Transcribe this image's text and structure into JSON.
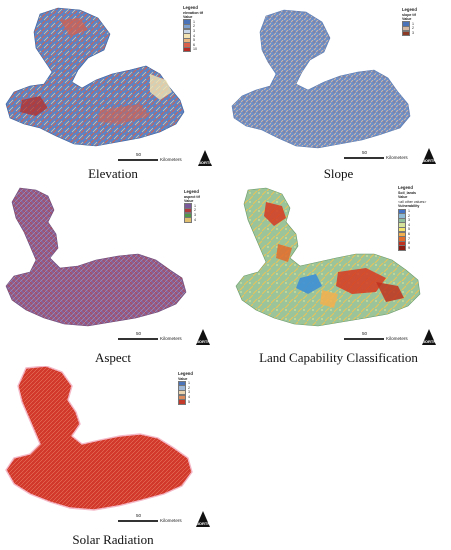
{
  "panels": [
    {
      "id": "elevation",
      "caption": "Elevation",
      "legend": {
        "title": "Legend",
        "subtitle": "elevation tif",
        "field": "Value",
        "items": [
          {
            "label": "1",
            "color": "#4a73b8"
          },
          {
            "label": "2",
            "color": "#7fa1d0"
          },
          {
            "label": "3",
            "color": "#c9d6e6"
          },
          {
            "label": "4",
            "color": "#f3e3b2"
          },
          {
            "label": "5",
            "color": "#eab47c"
          },
          {
            "label": "6",
            "color": "#d9604a"
          },
          {
            "label": "10",
            "color": "#b82a22"
          }
        ]
      },
      "scale": {
        "value": "50",
        "unit": "Kilometers"
      },
      "north": "NORTH",
      "base_color": "#5d83c4",
      "accents": [
        "#d9604a",
        "#f0cf9a",
        "#b82a22"
      ]
    },
    {
      "id": "slope",
      "caption": "Slope",
      "legend": {
        "title": "Legend",
        "subtitle": "slope tif",
        "field": "Value",
        "items": [
          {
            "label": "1",
            "color": "#4a73b8"
          },
          {
            "label": "2",
            "color": "#d5b8a4"
          },
          {
            "label": "3",
            "color": "#8b3a25"
          }
        ]
      },
      "scale": {
        "value": "50",
        "unit": "Kilometers"
      },
      "north": "NORTH",
      "base_color": "#6c8fc8",
      "accents": [
        "#d8b6a0",
        "#a8684e"
      ]
    },
    {
      "id": "aspect",
      "caption": "Aspect",
      "legend": {
        "title": "Legend",
        "subtitle": "aspect tif",
        "field": "Value",
        "items": [
          {
            "label": "1",
            "color": "#7b5a9c"
          },
          {
            "label": "2",
            "color": "#b33a3a"
          },
          {
            "label": "3",
            "color": "#4f9a4a"
          },
          {
            "label": "4",
            "color": "#e0c070"
          }
        ]
      },
      "scale": {
        "value": "50",
        "unit": "Kilometers"
      },
      "north": "NORTH",
      "base_color": "#8a5d94",
      "accents": [
        "#b04a52",
        "#9a9cc4",
        "#7a3f6e"
      ]
    },
    {
      "id": "land",
      "caption": "Land Capability Classification",
      "legend": {
        "title": "Legend",
        "subtitle": "Soil_lands",
        "field": "Value",
        "extra": "<all other values>",
        "field2": "Vulnerability",
        "items": [
          {
            "label": "1",
            "color": "#4472c4"
          },
          {
            "label": "2",
            "color": "#8fbad6"
          },
          {
            "label": "3",
            "color": "#8fbf9c"
          },
          {
            "label": "4",
            "color": "#d6e39a"
          },
          {
            "label": "5",
            "color": "#f2e46c"
          },
          {
            "label": "6",
            "color": "#f3b04e"
          },
          {
            "label": "7",
            "color": "#e26c2c"
          },
          {
            "label": "8",
            "color": "#c0321f"
          },
          {
            "label": "9",
            "color": "#8c1d14"
          }
        ]
      },
      "scale": {
        "value": "50",
        "unit": "Kilometers"
      },
      "north": "NORTH",
      "base_color": "#9cc49a",
      "accents": [
        "#d63a20",
        "#f2c24e",
        "#3d8fd6"
      ]
    },
    {
      "id": "solar",
      "caption": "Solar Radiation",
      "legend": {
        "title": "Legend",
        "subtitle": "",
        "field": "Value",
        "items": [
          {
            "label": "1",
            "color": "#4a73b8"
          },
          {
            "label": "2",
            "color": "#9fb8d8"
          },
          {
            "label": "3",
            "color": "#ead5b0"
          },
          {
            "label": "4",
            "color": "#dd8a5c"
          },
          {
            "label": "5",
            "color": "#c43a2a"
          }
        ]
      },
      "scale": {
        "value": "50",
        "unit": "Kilometers"
      },
      "north": "NORTH",
      "base_color": "#d33a2c",
      "accents": [
        "#e98a70",
        "#b82a22"
      ]
    }
  ]
}
